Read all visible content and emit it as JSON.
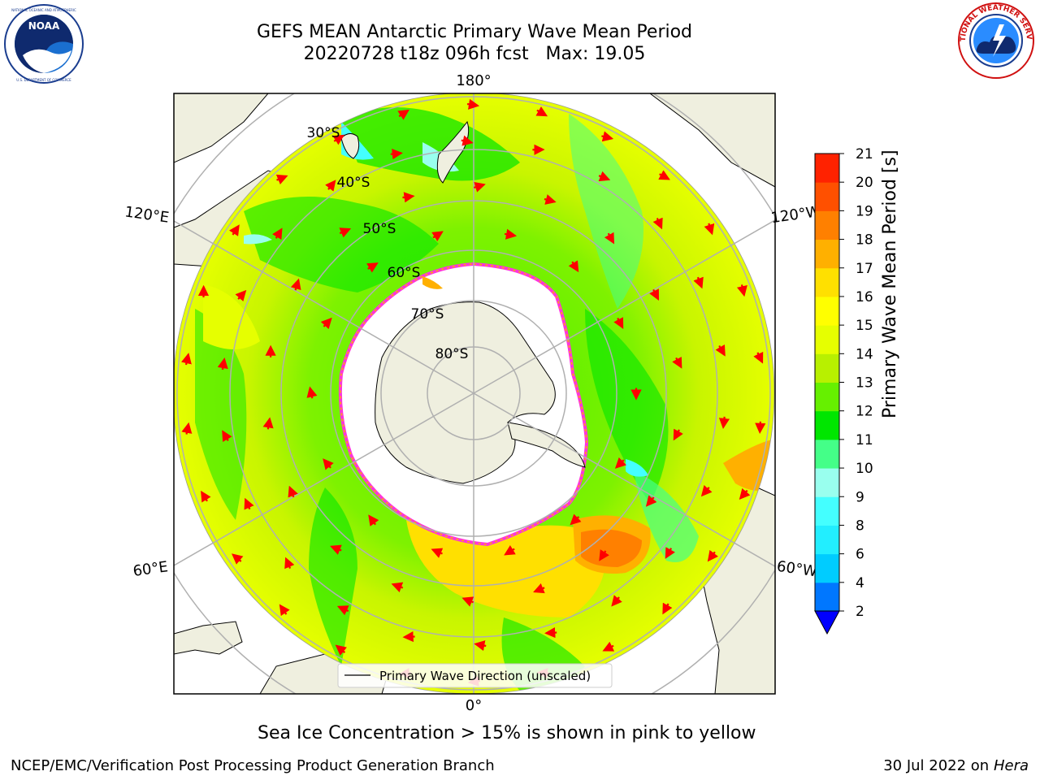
{
  "header": {
    "title_line1": "GEFS MEAN Antarctic Primary Wave Mean Period",
    "title_line2": "20220728 t18z 096h fcst   Max: 19.05"
  },
  "logos": {
    "left": {
      "text": "NOAA",
      "ring": "NATIONAL OCEANIC AND ATMOSPHERIC ADMINISTRATION • U.S. DEPARTMENT OF COMMERCE",
      "icon": "noaa-logo"
    },
    "right": {
      "ring": "NATIONAL WEATHER SERVICE",
      "icon": "nws-logo"
    }
  },
  "map": {
    "projection": "south-polar-stereographic",
    "longitude_labels": {
      "top": "180°",
      "bottom": "0°",
      "upper_left": "120°E",
      "upper_right": "120°W",
      "lower_left": "60°E",
      "lower_right": "60°W"
    },
    "latitude_labels": [
      "30°S",
      "40°S",
      "50°S",
      "60°S",
      "70°S",
      "80°S"
    ],
    "legend_label": "Primary Wave Direction (unscaled)",
    "ocean_color": "#b8f000",
    "land_color": "#efefdf",
    "ice_edge_color": "#ff33dd",
    "arrow_color": "#ff0000"
  },
  "colorbar": {
    "label": "Primary Wave Mean Period [s]",
    "ticks": [
      "2",
      "4",
      "6",
      "8",
      "9",
      "10",
      "11",
      "12",
      "13",
      "14",
      "15",
      "16",
      "17",
      "18",
      "19",
      "20",
      "21"
    ],
    "colors": [
      "#0077ff",
      "#00ccff",
      "#22eeff",
      "#44ffff",
      "#99ffee",
      "#44ff88",
      "#00e600",
      "#66f000",
      "#b8f000",
      "#e6ff00",
      "#ffff00",
      "#ffe000",
      "#ffb000",
      "#ff8000",
      "#ff5000",
      "#ff2200"
    ],
    "under_color": "#0000ff"
  },
  "caption": "Sea Ice Concentration > 15% is shown in pink to yellow",
  "footer": {
    "left": "NCEP/EMC/Verification Post Processing Product Generation Branch",
    "right_date": "30 Jul 2022 on ",
    "right_host": "Hera"
  }
}
